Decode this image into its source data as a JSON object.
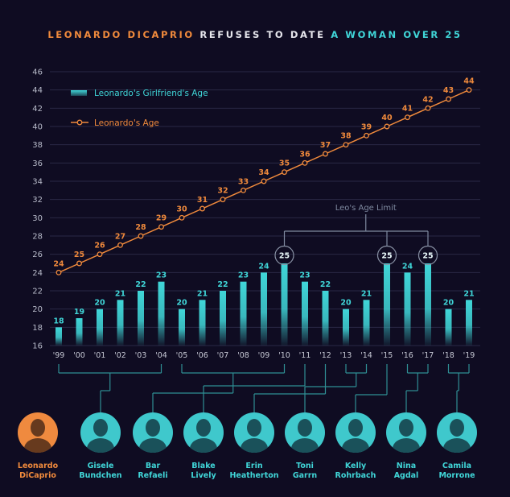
{
  "title": {
    "part1": "LEONARDO DICAPRIO",
    "part2": "REFUSES TO DATE",
    "part3": "A WOMAN OVER 25"
  },
  "colors": {
    "background": "#0f0c22",
    "orange": "#f08a3c",
    "cyan": "#40d6d8",
    "grid": "#2a2845",
    "annotation": "#7f8aa0"
  },
  "chart_data": {
    "type": "bar",
    "categories": [
      "'99",
      "'00",
      "'01",
      "'02",
      "'03",
      "'04",
      "'05",
      "'06",
      "'07",
      "'08",
      "'09",
      "'10",
      "'11",
      "'12",
      "'13",
      "'14",
      "'15",
      "'16",
      "'17",
      "'18",
      "'19"
    ],
    "series": [
      {
        "name": "Leonardo's Girlfriend's Age",
        "type": "bar",
        "color": "#40d6d8",
        "values": [
          18,
          19,
          20,
          21,
          22,
          23,
          20,
          21,
          22,
          23,
          24,
          25,
          23,
          22,
          20,
          21,
          25,
          24,
          25,
          20,
          21
        ]
      },
      {
        "name": "Leonardo's Age",
        "type": "line",
        "color": "#f08a3c",
        "values": [
          24,
          25,
          26,
          27,
          28,
          29,
          30,
          31,
          32,
          33,
          34,
          35,
          36,
          37,
          38,
          39,
          40,
          41,
          42,
          43,
          44
        ]
      }
    ],
    "yticks": [
      16,
      18,
      20,
      22,
      24,
      26,
      28,
      30,
      32,
      34,
      36,
      38,
      40,
      42,
      44,
      46
    ],
    "ylim": [
      16,
      46
    ],
    "grid": true,
    "legend": "top-left",
    "annotation": {
      "text": "Leo's Age Limit",
      "highlighted": [
        "'10",
        "'15",
        "'17"
      ]
    }
  },
  "people": [
    {
      "name_line1": "Leonardo",
      "name_line2": "DiCaprio",
      "color": "orange"
    },
    {
      "name_line1": "Gisele",
      "name_line2": "Bundchen",
      "color": "cyan",
      "years": [
        "'99",
        "'04"
      ]
    },
    {
      "name_line1": "Bar",
      "name_line2": "Refaeli",
      "color": "cyan",
      "years": [
        "'05",
        "'10"
      ]
    },
    {
      "name_line1": "Blake",
      "name_line2": "Lively",
      "color": "cyan",
      "years": [
        "'11"
      ]
    },
    {
      "name_line1": "Erin",
      "name_line2": "Heatherton",
      "color": "cyan",
      "years": [
        "'12"
      ]
    },
    {
      "name_line1": "Toni",
      "name_line2": "Garrn",
      "color": "cyan",
      "years": [
        "'13",
        "'14"
      ]
    },
    {
      "name_line1": "Kelly",
      "name_line2": "Rohrbach",
      "color": "cyan",
      "years": [
        "'15"
      ]
    },
    {
      "name_line1": "Nina",
      "name_line2": "Agdal",
      "color": "cyan",
      "years": [
        "'16",
        "'17"
      ]
    },
    {
      "name_line1": "Camila",
      "name_line2": "Morrone",
      "color": "cyan",
      "years": [
        "'18",
        "'19"
      ]
    }
  ]
}
